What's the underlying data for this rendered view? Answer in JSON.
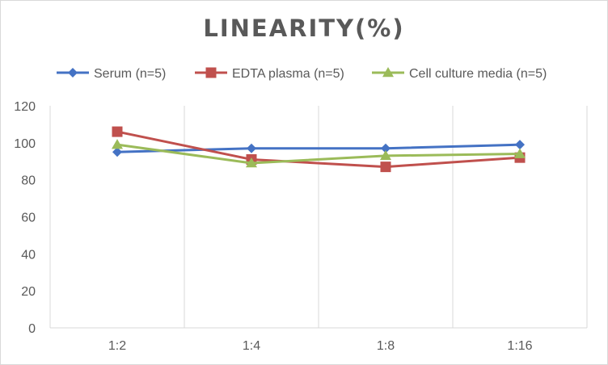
{
  "chart_data": {
    "type": "line",
    "title": "LINEARITY(%)",
    "xlabel": "",
    "ylabel": "",
    "categories": [
      "1:2",
      "1:4",
      "1:8",
      "1:16"
    ],
    "ylim": [
      0,
      120
    ],
    "yticks": [
      0,
      20,
      40,
      60,
      80,
      100,
      120
    ],
    "grid": "vertical",
    "legend_position": "top",
    "series": [
      {
        "name": "Serum (n=5)",
        "values": [
          95,
          97,
          97,
          99
        ],
        "color": "#4472c4",
        "marker": "diamond"
      },
      {
        "name": "EDTA plasma (n=5)",
        "values": [
          106,
          91,
          87,
          92
        ],
        "color": "#c0504d",
        "marker": "square"
      },
      {
        "name": "Cell culture media (n=5)",
        "values": [
          99,
          89,
          93,
          94
        ],
        "color": "#9bbb59",
        "marker": "triangle"
      }
    ]
  }
}
